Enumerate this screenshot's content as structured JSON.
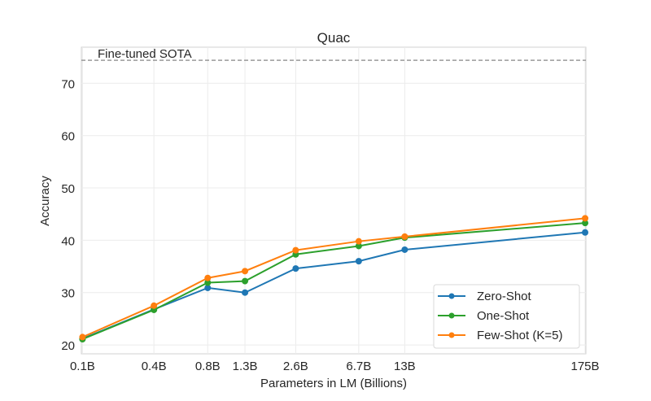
{
  "chart_data": {
    "type": "line",
    "title": "Quac",
    "xlabel": "Parameters in LM (Billions)",
    "ylabel": "Accuracy",
    "x_scale": "log",
    "x": [
      0.125,
      0.35,
      0.76,
      1.3,
      2.7,
      6.7,
      13,
      175
    ],
    "x_tick_labels": [
      "0.1B",
      "0.4B",
      "0.8B",
      "1.3B",
      "2.6B",
      "6.7B",
      "13B",
      "175B"
    ],
    "xlim": [
      0.123,
      177
    ],
    "ylim": [
      18.3,
      76.9
    ],
    "y_ticks": [
      20,
      30,
      40,
      50,
      60,
      70
    ],
    "grid": true,
    "legend_position": "lower-right",
    "series": [
      {
        "name": "Zero-Shot",
        "color": "#1f77b4",
        "values": [
          21.2,
          26.8,
          30.9,
          30.0,
          34.6,
          36.0,
          38.2,
          41.5
        ]
      },
      {
        "name": "One-Shot",
        "color": "#2ca02c",
        "values": [
          21.1,
          26.7,
          31.9,
          32.2,
          37.3,
          38.9,
          40.5,
          43.3
        ]
      },
      {
        "name": "Few-Shot (K=5)",
        "color": "#ff7f0e",
        "values": [
          21.5,
          27.5,
          32.8,
          34.1,
          38.1,
          39.8,
          40.7,
          44.2
        ]
      }
    ],
    "reference_line": {
      "label": "Fine-tuned SOTA",
      "value": 74.4,
      "color": "#999999",
      "style": "dashed"
    }
  }
}
